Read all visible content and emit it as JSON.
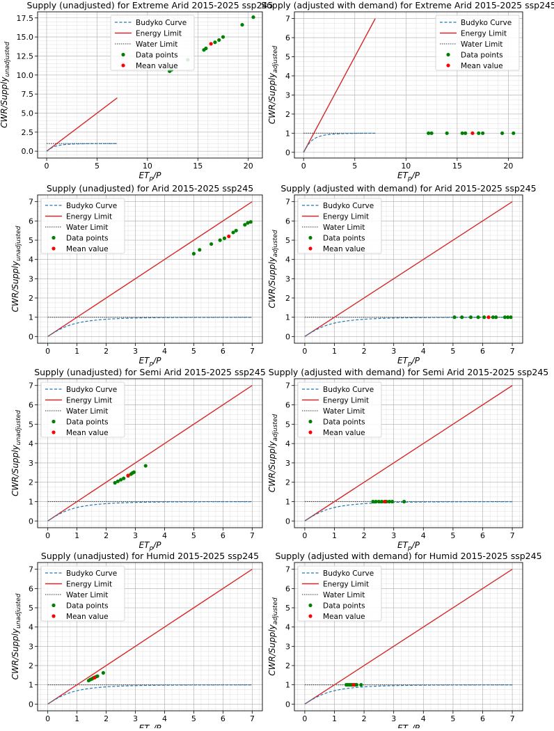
{
  "colors": {
    "budyko": "#1f77b4",
    "energy": "#d62728",
    "water": "#333333",
    "data": "#008000",
    "mean": "#ff0000"
  },
  "chart_data": [
    {
      "type": "scatter",
      "title": "Supply (unadjusted) for Extreme Arid 2015-2025 ssp245",
      "xlabel_main": "ET",
      "xlabel_sub": "p",
      "xlabel_tail": "/P",
      "ylabel_main": "CWR/Supply",
      "ylabel_sub": "unadjusted",
      "xlim": [
        -0.9,
        21.4
      ],
      "ylim": [
        -0.9,
        18.3
      ],
      "xticks": [
        0,
        5,
        10,
        15,
        20
      ],
      "xtick_labels": [
        "0",
        "5",
        "10",
        "15",
        "20"
      ],
      "yticks": [
        0,
        2.5,
        5,
        7.5,
        10,
        12.5,
        15,
        17.5
      ],
      "ytick_labels": [
        "0.0",
        "2.5",
        "5.0",
        "7.5",
        "10.0",
        "12.5",
        "15.0",
        "17.5"
      ],
      "minor_x": 1,
      "minor_y": 0.5,
      "limit_xmax": 7,
      "legend": [
        "Budyko Curve",
        "Energy Limit",
        "Water Limit",
        "Data points",
        "Mean value"
      ],
      "legend_loc": "top-center",
      "data_points": [
        [
          12.2,
          10.5
        ],
        [
          12.4,
          10.7
        ],
        [
          14.0,
          12.0
        ],
        [
          15.6,
          13.3
        ],
        [
          15.8,
          13.5
        ],
        [
          16.7,
          14.3
        ],
        [
          17.1,
          14.6
        ],
        [
          17.5,
          15.0
        ],
        [
          19.4,
          16.6
        ],
        [
          20.5,
          17.6
        ]
      ],
      "mean": [
        16.3,
        14.1
      ]
    },
    {
      "type": "scatter",
      "title": "Supply (adjusted with demand) for Extreme Arid 2015-2025 ssp245",
      "xlabel_main": "ET",
      "xlabel_sub": "p",
      "xlabel_tail": "/P",
      "ylabel_main": "CWR/Supply",
      "ylabel_sub": "adjusted",
      "xlim": [
        -0.9,
        21.4
      ],
      "ylim": [
        -0.3,
        7.35
      ],
      "xticks": [
        0,
        5,
        10,
        15,
        20
      ],
      "xtick_labels": [
        "0",
        "5",
        "10",
        "15",
        "20"
      ],
      "yticks": [
        0,
        1,
        2,
        3,
        4,
        5,
        6,
        7
      ],
      "ytick_labels": [
        "0",
        "1",
        "2",
        "3",
        "4",
        "5",
        "6",
        "7"
      ],
      "minor_x": 1,
      "minor_y": 0.25,
      "limit_xmax": 7,
      "legend": [
        "Budyko Curve",
        "Energy Limit",
        "Water Limit",
        "Data points",
        "Mean value"
      ],
      "legend_loc": "top-right",
      "data_points": [
        [
          12.2,
          1
        ],
        [
          12.5,
          1
        ],
        [
          14.0,
          1
        ],
        [
          15.5,
          1
        ],
        [
          15.8,
          1
        ],
        [
          17.1,
          1
        ],
        [
          17.5,
          1
        ],
        [
          19.4,
          1
        ],
        [
          20.5,
          1
        ]
      ],
      "mean": [
        16.5,
        1
      ]
    },
    {
      "type": "scatter",
      "title": "Supply (unadjusted) for Arid 2015-2025 ssp245",
      "xlabel_main": "ET",
      "xlabel_sub": "p",
      "xlabel_tail": "/P",
      "ylabel_main": "CWR/Supply",
      "ylabel_sub": "unadjusted",
      "xlim": [
        -0.35,
        7.35
      ],
      "ylim": [
        -0.35,
        7.35
      ],
      "xticks": [
        0,
        1,
        2,
        3,
        4,
        5,
        6,
        7
      ],
      "xtick_labels": [
        "0",
        "1",
        "2",
        "3",
        "4",
        "5",
        "6",
        "7"
      ],
      "yticks": [
        0,
        1,
        2,
        3,
        4,
        5,
        6,
        7
      ],
      "ytick_labels": [
        "0",
        "1",
        "2",
        "3",
        "4",
        "5",
        "6",
        "7"
      ],
      "minor_x": 0.25,
      "minor_y": 0.25,
      "limit_xmax": 7,
      "legend": [
        "Budyko Curve",
        "Energy Limit",
        "Water Limit",
        "Data points",
        "Mean value"
      ],
      "legend_loc": "top-left",
      "data_points": [
        [
          5.0,
          4.3
        ],
        [
          5.2,
          4.5
        ],
        [
          5.6,
          4.8
        ],
        [
          5.9,
          5.0
        ],
        [
          6.05,
          5.1
        ],
        [
          6.35,
          5.4
        ],
        [
          6.45,
          5.5
        ],
        [
          6.75,
          5.8
        ],
        [
          6.85,
          5.9
        ],
        [
          6.95,
          5.95
        ]
      ],
      "mean": [
        6.2,
        5.2
      ]
    },
    {
      "type": "scatter",
      "title": "Supply (adjusted with demand) for Arid 2015-2025 ssp245",
      "xlabel_main": "ET",
      "xlabel_sub": "p",
      "xlabel_tail": "/P",
      "ylabel_main": "CWR/Supply",
      "ylabel_sub": "adjusted",
      "xlim": [
        -0.35,
        7.35
      ],
      "ylim": [
        -0.35,
        7.35
      ],
      "xticks": [
        0,
        1,
        2,
        3,
        4,
        5,
        6,
        7
      ],
      "xtick_labels": [
        "0",
        "1",
        "2",
        "3",
        "4",
        "5",
        "6",
        "7"
      ],
      "yticks": [
        0,
        1,
        2,
        3,
        4,
        5,
        6,
        7
      ],
      "ytick_labels": [
        "0",
        "1",
        "2",
        "3",
        "4",
        "5",
        "6",
        "7"
      ],
      "minor_x": 0.25,
      "minor_y": 0.25,
      "limit_xmax": 7,
      "legend": [
        "Budyko Curve",
        "Energy Limit",
        "Water Limit",
        "Data points",
        "Mean value"
      ],
      "legend_loc": "top-left",
      "data_points": [
        [
          5.05,
          1
        ],
        [
          5.3,
          1
        ],
        [
          5.6,
          1
        ],
        [
          5.85,
          1
        ],
        [
          6.05,
          1
        ],
        [
          6.35,
          1
        ],
        [
          6.45,
          1
        ],
        [
          6.75,
          1
        ],
        [
          6.85,
          1
        ],
        [
          6.95,
          1
        ]
      ],
      "mean": [
        6.2,
        1
      ]
    },
    {
      "type": "scatter",
      "title": "Supply (unadjusted) for Semi Arid 2015-2025 ssp245",
      "xlabel_main": "ET",
      "xlabel_sub": "p",
      "xlabel_tail": "/P",
      "ylabel_main": "CWR/Supply",
      "ylabel_sub": "unadjusted",
      "xlim": [
        -0.35,
        7.35
      ],
      "ylim": [
        -0.35,
        7.35
      ],
      "xticks": [
        0,
        1,
        2,
        3,
        4,
        5,
        6,
        7
      ],
      "xtick_labels": [
        "0",
        "1",
        "2",
        "3",
        "4",
        "5",
        "6",
        "7"
      ],
      "yticks": [
        0,
        1,
        2,
        3,
        4,
        5,
        6,
        7
      ],
      "ytick_labels": [
        "0",
        "1",
        "2",
        "3",
        "4",
        "5",
        "6",
        "7"
      ],
      "minor_x": 0.25,
      "minor_y": 0.25,
      "limit_xmax": 7,
      "legend": [
        "Budyko Curve",
        "Energy Limit",
        "Water Limit",
        "Data points",
        "Mean value"
      ],
      "legend_loc": "top-left",
      "data_points": [
        [
          2.3,
          1.97
        ],
        [
          2.4,
          2.05
        ],
        [
          2.5,
          2.13
        ],
        [
          2.6,
          2.2
        ],
        [
          2.75,
          2.33
        ],
        [
          2.85,
          2.42
        ],
        [
          2.9,
          2.48
        ],
        [
          2.95,
          2.52
        ],
        [
          3.35,
          2.85
        ]
      ],
      "mean": [
        2.75,
        2.35
      ]
    },
    {
      "type": "scatter",
      "title": "Supply (adjusted with demand) for Semi Arid 2015-2025 ssp245",
      "xlabel_main": "ET",
      "xlabel_sub": "p",
      "xlabel_tail": "/P",
      "ylabel_main": "CWR/Supply",
      "ylabel_sub": "adjusted",
      "xlim": [
        -0.35,
        7.35
      ],
      "ylim": [
        -0.35,
        7.35
      ],
      "xticks": [
        0,
        1,
        2,
        3,
        4,
        5,
        6,
        7
      ],
      "xtick_labels": [
        "0",
        "1",
        "2",
        "3",
        "4",
        "5",
        "6",
        "7"
      ],
      "yticks": [
        0,
        1,
        2,
        3,
        4,
        5,
        6,
        7
      ],
      "ytick_labels": [
        "0",
        "1",
        "2",
        "3",
        "4",
        "5",
        "6",
        "7"
      ],
      "minor_x": 0.25,
      "minor_y": 0.25,
      "limit_xmax": 7,
      "legend": [
        "Budyko Curve",
        "Energy Limit",
        "Water Limit",
        "Data points",
        "Mean value"
      ],
      "legend_loc": "top-left",
      "data_points": [
        [
          2.3,
          1
        ],
        [
          2.4,
          1
        ],
        [
          2.5,
          1
        ],
        [
          2.6,
          1
        ],
        [
          2.75,
          1
        ],
        [
          2.85,
          1
        ],
        [
          2.95,
          1
        ],
        [
          3.35,
          1
        ]
      ],
      "mean": [
        2.7,
        1
      ]
    },
    {
      "type": "scatter",
      "title": "Supply (unadjusted) for Humid 2015-2025 ssp245",
      "xlabel_main": "ET",
      "xlabel_sub": "p",
      "xlabel_tail": "/P",
      "ylabel_main": "CWR/Supply",
      "ylabel_sub": "unadjusted",
      "xlim": [
        -0.35,
        7.35
      ],
      "ylim": [
        -0.35,
        7.35
      ],
      "xticks": [
        0,
        1,
        2,
        3,
        4,
        5,
        6,
        7
      ],
      "xtick_labels": [
        "0",
        "1",
        "2",
        "3",
        "4",
        "5",
        "6",
        "7"
      ],
      "yticks": [
        0,
        1,
        2,
        3,
        4,
        5,
        6,
        7
      ],
      "ytick_labels": [
        "0",
        "1",
        "2",
        "3",
        "4",
        "5",
        "6",
        "7"
      ],
      "minor_x": 0.25,
      "minor_y": 0.25,
      "limit_xmax": 7,
      "legend": [
        "Budyko Curve",
        "Energy Limit",
        "Water Limit",
        "Data points",
        "Mean value"
      ],
      "legend_loc": "top-left",
      "data_points": [
        [
          1.4,
          1.22
        ],
        [
          1.45,
          1.27
        ],
        [
          1.5,
          1.3
        ],
        [
          1.55,
          1.35
        ],
        [
          1.6,
          1.38
        ],
        [
          1.65,
          1.42
        ],
        [
          1.7,
          1.45
        ],
        [
          1.9,
          1.62
        ]
      ],
      "mean": [
        1.6,
        1.37
      ]
    },
    {
      "type": "scatter",
      "title": "Supply (adjusted with demand) for Humid 2015-2025 ssp245",
      "xlabel_main": "ET",
      "xlabel_sub": "p",
      "xlabel_tail": "/P",
      "ylabel_main": "CWR/Supply",
      "ylabel_sub": "adjusted",
      "xlim": [
        -0.35,
        7.35
      ],
      "ylim": [
        -0.35,
        7.35
      ],
      "xticks": [
        0,
        1,
        2,
        3,
        4,
        5,
        6,
        7
      ],
      "xtick_labels": [
        "0",
        "1",
        "2",
        "3",
        "4",
        "5",
        "6",
        "7"
      ],
      "yticks": [
        0,
        1,
        2,
        3,
        4,
        5,
        6,
        7
      ],
      "ytick_labels": [
        "0",
        "1",
        "2",
        "3",
        "4",
        "5",
        "6",
        "7"
      ],
      "minor_x": 0.25,
      "minor_y": 0.25,
      "limit_xmax": 7,
      "legend": [
        "Budyko Curve",
        "Energy Limit",
        "Water Limit",
        "Data points",
        "Mean value"
      ],
      "legend_loc": "top-left",
      "data_points": [
        [
          1.4,
          1
        ],
        [
          1.45,
          1
        ],
        [
          1.5,
          1
        ],
        [
          1.55,
          1
        ],
        [
          1.6,
          1
        ],
        [
          1.7,
          1
        ],
        [
          1.75,
          1
        ],
        [
          1.9,
          1
        ]
      ],
      "mean": [
        1.65,
        1
      ]
    }
  ]
}
